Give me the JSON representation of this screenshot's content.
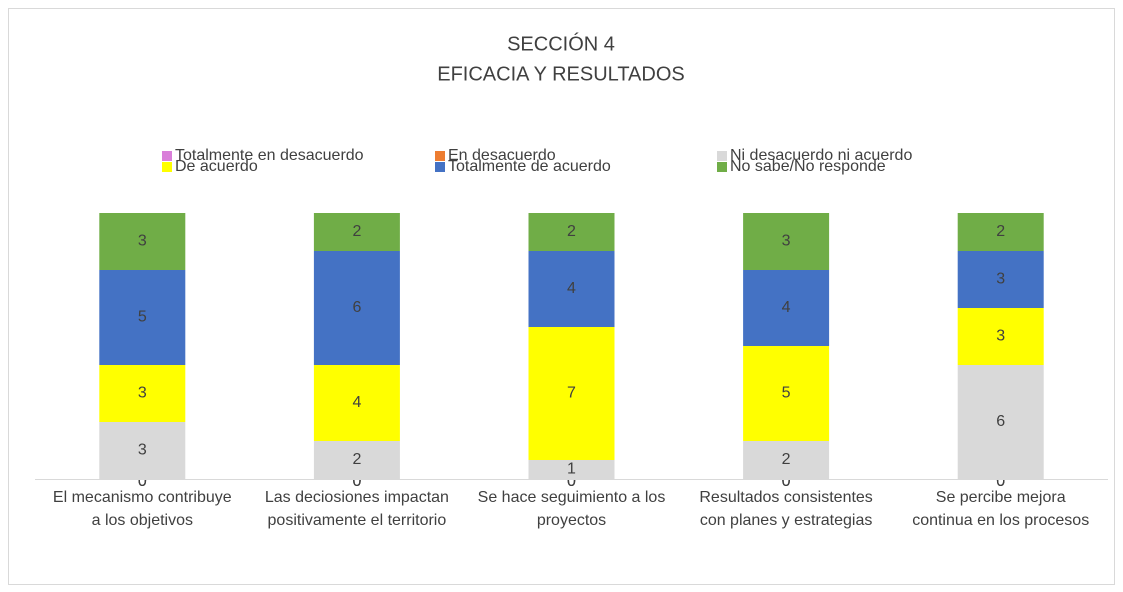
{
  "chart_data": {
    "type": "stacked_bar",
    "title": "SECCIÓN 4",
    "subtitle": "EFICACIA Y RESULTADOS",
    "categories": [
      "El mecanismo contribuye a los objetivos",
      "Las deciosiones impactan positivamente el territorio",
      "Se hace seguimiento a los proyectos",
      "Resultados consistentes con planes y estrategias",
      "Se percibe mejora continua en los procesos"
    ],
    "series": [
      {
        "name": "Totalmente en desacuerdo",
        "color": "#d97fd9",
        "values": [
          0,
          0,
          0,
          0,
          0
        ]
      },
      {
        "name": "En desacuerdo",
        "color": "#ed7d31",
        "values": [
          0,
          0,
          0,
          0,
          0
        ]
      },
      {
        "name": "Ni desacuerdo ni acuerdo",
        "color": "#d9d9d9",
        "values": [
          3,
          2,
          1,
          2,
          6
        ]
      },
      {
        "name": "De acuerdo",
        "color": "#ffff00",
        "values": [
          3,
          4,
          7,
          5,
          3
        ]
      },
      {
        "name": "Totalmente de acuerdo",
        "color": "#4472c4",
        "values": [
          5,
          6,
          4,
          4,
          3
        ]
      },
      {
        "name": "No sabe/No responde",
        "color": "#70ad47",
        "values": [
          3,
          2,
          2,
          3,
          2
        ]
      }
    ],
    "ylim": [
      0,
      14
    ],
    "legend": "top"
  }
}
